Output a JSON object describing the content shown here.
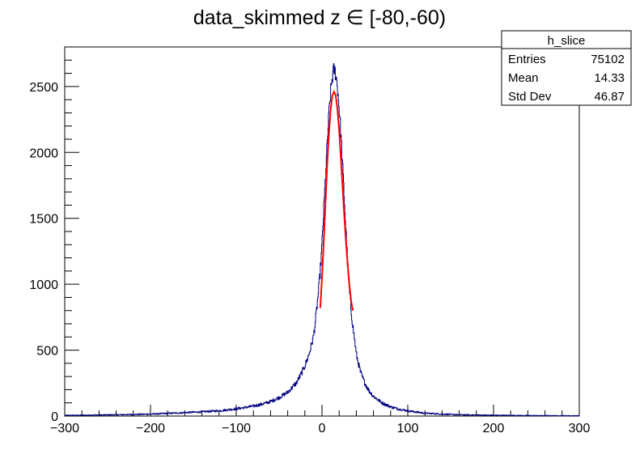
{
  "chart_data": {
    "type": "histogram",
    "title": "data_skimmed z  ∈ [-80,-60)",
    "xlim": [
      -300,
      300
    ],
    "ylim": [
      0,
      2800
    ],
    "x_ticks": [
      -300,
      -200,
      -100,
      0,
      100,
      200,
      300
    ],
    "x_tick_labels": [
      "−300",
      "−200",
      "−100",
      "0",
      "100",
      "200",
      "300"
    ],
    "y_ticks": [
      0,
      500,
      1000,
      1500,
      2000,
      2500
    ],
    "y_tick_labels": [
      "0",
      "500",
      "1000",
      "1500",
      "2000",
      "2500"
    ],
    "grid": false,
    "series": [
      {
        "kind": "histogram",
        "color": "#000080",
        "x": [
          -300,
          -280,
          -260,
          -240,
          -220,
          -200,
          -180,
          -160,
          -140,
          -120,
          -100,
          -90,
          -80,
          -70,
          -60,
          -50,
          -40,
          -30,
          -25,
          -20,
          -15,
          -10,
          -8,
          -6,
          -4,
          -2,
          0,
          2,
          4,
          6,
          8,
          10,
          12,
          14,
          16,
          18,
          20,
          22,
          24,
          26,
          28,
          30,
          32,
          34,
          36,
          38,
          40,
          45,
          50,
          55,
          60,
          70,
          80,
          90,
          100,
          110,
          120,
          140,
          160,
          180,
          200,
          220,
          240,
          260,
          280,
          300
        ],
        "values": [
          5,
          6,
          8,
          10,
          12,
          15,
          20,
          26,
          32,
          40,
          55,
          65,
          75,
          90,
          110,
          140,
          180,
          250,
          310,
          380,
          470,
          600,
          700,
          820,
          950,
          1100,
          1300,
          1550,
          1800,
          2050,
          2280,
          2450,
          2570,
          2630,
          2600,
          2500,
          2340,
          2140,
          1900,
          1650,
          1400,
          1150,
          950,
          800,
          680,
          580,
          470,
          330,
          250,
          190,
          150,
          100,
          70,
          52,
          40,
          30,
          22,
          15,
          10,
          8,
          6,
          5,
          4,
          3,
          3,
          2
        ]
      },
      {
        "kind": "fit",
        "color": "#ff0000",
        "x": [
          -2,
          0,
          2,
          4,
          6,
          8,
          10,
          12,
          14,
          16,
          18,
          20,
          22,
          24,
          26,
          28,
          30,
          32,
          34,
          36
        ],
        "values": [
          820,
          1050,
          1320,
          1610,
          1900,
          2140,
          2320,
          2430,
          2460,
          2430,
          2330,
          2170,
          1960,
          1740,
          1520,
          1320,
          1140,
          990,
          870,
          800
        ]
      }
    ]
  },
  "stats_box": {
    "name": "h_slice",
    "rows": [
      {
        "label": "Entries",
        "value": "75102"
      },
      {
        "label": "Mean",
        "value": "14.33"
      },
      {
        "label": "Std Dev",
        "value": "46.87"
      }
    ]
  }
}
